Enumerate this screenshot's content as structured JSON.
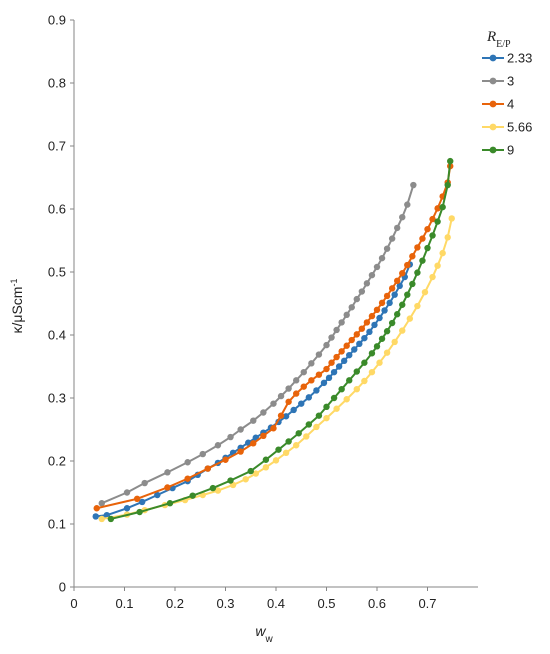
{
  "chart_data": {
    "type": "line",
    "xlabel": "w",
    "xlabel_sub": "w",
    "ylabel": "κ/μScm",
    "ylabel_sup": "-1",
    "xlim": [
      0,
      0.8
    ],
    "ylim": [
      0,
      0.9
    ],
    "xticks": [
      "0",
      "0.1",
      "0.2",
      "0.3",
      "0.4",
      "0.5",
      "0.6",
      "0.7"
    ],
    "yticks": [
      "0",
      "0.1",
      "0.2",
      "0.3",
      "0.4",
      "0.5",
      "0.6",
      "0.7",
      "0.8",
      "0.9"
    ],
    "grid": false,
    "legend": {
      "position": "top-right",
      "title": "R",
      "title_sub": "E/P"
    },
    "series": [
      {
        "name": "2.33",
        "color": "#2E75B6",
        "x": [
          0.043,
          0.065,
          0.105,
          0.135,
          0.165,
          0.195,
          0.225,
          0.245,
          0.265,
          0.285,
          0.3,
          0.315,
          0.33,
          0.345,
          0.36,
          0.375,
          0.39,
          0.405,
          0.42,
          0.435,
          0.45,
          0.465,
          0.48,
          0.495,
          0.505,
          0.515,
          0.525,
          0.535,
          0.545,
          0.555,
          0.565,
          0.575,
          0.585,
          0.595,
          0.605,
          0.615,
          0.625,
          0.635,
          0.645,
          0.655,
          0.665
        ],
        "y": [
          0.112,
          0.114,
          0.125,
          0.135,
          0.146,
          0.157,
          0.168,
          0.178,
          0.188,
          0.197,
          0.205,
          0.213,
          0.221,
          0.229,
          0.237,
          0.245,
          0.253,
          0.262,
          0.271,
          0.281,
          0.291,
          0.301,
          0.312,
          0.324,
          0.332,
          0.341,
          0.35,
          0.359,
          0.368,
          0.377,
          0.386,
          0.395,
          0.405,
          0.416,
          0.427,
          0.439,
          0.451,
          0.464,
          0.478,
          0.492,
          0.512
        ]
      },
      {
        "name": "3",
        "color": "#8C8C8C",
        "x": [
          0.055,
          0.105,
          0.14,
          0.185,
          0.225,
          0.255,
          0.285,
          0.31,
          0.33,
          0.355,
          0.375,
          0.395,
          0.41,
          0.425,
          0.44,
          0.455,
          0.47,
          0.485,
          0.5,
          0.51,
          0.52,
          0.53,
          0.54,
          0.55,
          0.56,
          0.57,
          0.58,
          0.59,
          0.6,
          0.61,
          0.62,
          0.63,
          0.64,
          0.65,
          0.66,
          0.672
        ],
        "y": [
          0.133,
          0.15,
          0.165,
          0.182,
          0.198,
          0.211,
          0.225,
          0.238,
          0.25,
          0.264,
          0.277,
          0.291,
          0.303,
          0.315,
          0.328,
          0.341,
          0.355,
          0.369,
          0.384,
          0.396,
          0.408,
          0.42,
          0.432,
          0.444,
          0.457,
          0.469,
          0.482,
          0.495,
          0.508,
          0.522,
          0.537,
          0.553,
          0.57,
          0.587,
          0.607,
          0.638
        ]
      },
      {
        "name": "4",
        "color": "#E8630A",
        "x": [
          0.045,
          0.125,
          0.185,
          0.225,
          0.265,
          0.3,
          0.33,
          0.355,
          0.375,
          0.395,
          0.41,
          0.425,
          0.44,
          0.455,
          0.47,
          0.485,
          0.5,
          0.51,
          0.52,
          0.53,
          0.54,
          0.55,
          0.56,
          0.57,
          0.58,
          0.59,
          0.6,
          0.61,
          0.62,
          0.63,
          0.64,
          0.65,
          0.66,
          0.67,
          0.68,
          0.69,
          0.7,
          0.71,
          0.72,
          0.73,
          0.74,
          0.745
        ],
        "y": [
          0.125,
          0.14,
          0.158,
          0.172,
          0.188,
          0.202,
          0.215,
          0.228,
          0.24,
          0.252,
          0.272,
          0.294,
          0.307,
          0.318,
          0.328,
          0.337,
          0.346,
          0.356,
          0.365,
          0.374,
          0.383,
          0.392,
          0.401,
          0.41,
          0.42,
          0.43,
          0.44,
          0.451,
          0.462,
          0.474,
          0.486,
          0.498,
          0.511,
          0.525,
          0.539,
          0.553,
          0.568,
          0.584,
          0.601,
          0.62,
          0.642,
          0.668
        ]
      },
      {
        "name": "5.66",
        "color": "#FFD966",
        "x": [
          0.055,
          0.105,
          0.14,
          0.18,
          0.22,
          0.255,
          0.285,
          0.315,
          0.34,
          0.36,
          0.38,
          0.4,
          0.42,
          0.44,
          0.46,
          0.48,
          0.5,
          0.52,
          0.54,
          0.56,
          0.575,
          0.59,
          0.605,
          0.62,
          0.635,
          0.65,
          0.665,
          0.68,
          0.695,
          0.71,
          0.72,
          0.73,
          0.74,
          0.748
        ],
        "y": [
          0.108,
          0.115,
          0.122,
          0.13,
          0.138,
          0.146,
          0.153,
          0.162,
          0.171,
          0.18,
          0.19,
          0.201,
          0.213,
          0.225,
          0.239,
          0.254,
          0.268,
          0.283,
          0.298,
          0.314,
          0.327,
          0.341,
          0.356,
          0.372,
          0.389,
          0.407,
          0.426,
          0.446,
          0.468,
          0.492,
          0.51,
          0.53,
          0.555,
          0.585
        ]
      },
      {
        "name": "9",
        "color": "#3A8A2A",
        "x": [
          0.073,
          0.13,
          0.19,
          0.235,
          0.275,
          0.31,
          0.35,
          0.38,
          0.405,
          0.425,
          0.445,
          0.465,
          0.485,
          0.5,
          0.515,
          0.53,
          0.545,
          0.56,
          0.575,
          0.59,
          0.6,
          0.61,
          0.62,
          0.63,
          0.64,
          0.65,
          0.66,
          0.67,
          0.68,
          0.69,
          0.7,
          0.71,
          0.72,
          0.73,
          0.74,
          0.745
        ],
        "y": [
          0.108,
          0.119,
          0.133,
          0.145,
          0.157,
          0.169,
          0.184,
          0.202,
          0.218,
          0.231,
          0.244,
          0.258,
          0.272,
          0.286,
          0.3,
          0.314,
          0.328,
          0.342,
          0.356,
          0.371,
          0.382,
          0.394,
          0.406,
          0.419,
          0.433,
          0.448,
          0.464,
          0.481,
          0.499,
          0.518,
          0.538,
          0.558,
          0.58,
          0.603,
          0.638,
          0.676
        ]
      }
    ]
  }
}
